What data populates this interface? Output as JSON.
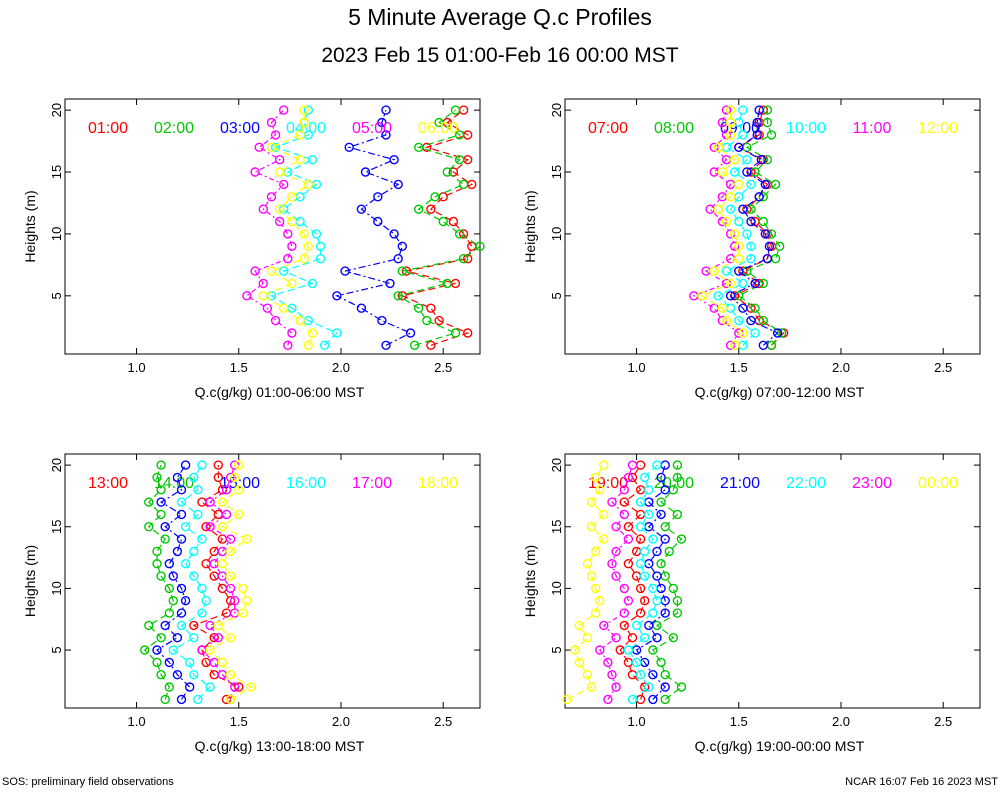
{
  "title": "5 Minute Average Q.c Profiles",
  "subtitle": "2023 Feb 15 01:00-Feb 16 00:00 MST",
  "footer_left": "SOS: preliminary field observations",
  "footer_right": "NCAR 16:07 Feb 16 2023 MST",
  "colors": {
    "red": "#ff0000",
    "green": "#00c800",
    "blue": "#0000ff",
    "cyan": "#00ffff",
    "magenta": "#ff00ff",
    "yellow": "#ffff00"
  },
  "chart_data": [
    {
      "type": "line",
      "xlabel": "Q.c(g/kg) 01:00-06:00 MST",
      "ylabel": "Heights (m)",
      "xlim": [
        0.65,
        2.68
      ],
      "ylim": [
        0.3,
        20.9
      ],
      "xticks": [
        1.0,
        1.5,
        2.0,
        2.5
      ],
      "yticks": [
        5,
        10,
        15,
        20
      ],
      "heights": [
        1,
        2,
        3,
        4,
        5,
        6,
        7,
        8,
        9,
        10,
        11,
        12,
        13,
        14,
        15,
        16,
        17,
        18,
        19,
        20
      ],
      "series": [
        {
          "name": "01:00",
          "color": "red",
          "values": [
            2.44,
            2.62,
            2.48,
            2.44,
            2.3,
            2.56,
            2.32,
            2.62,
            2.64,
            2.6,
            2.55,
            2.44,
            2.5,
            2.64,
            2.55,
            2.62,
            2.42,
            2.62,
            2.52,
            2.6
          ]
        },
        {
          "name": "02:00",
          "color": "green",
          "values": [
            2.36,
            2.56,
            2.42,
            2.38,
            2.28,
            2.52,
            2.3,
            2.6,
            2.68,
            2.58,
            2.5,
            2.38,
            2.46,
            2.6,
            2.52,
            2.58,
            2.38,
            2.58,
            2.48,
            2.56
          ]
        },
        {
          "name": "03:00",
          "color": "blue",
          "values": [
            2.22,
            2.34,
            2.2,
            2.1,
            1.98,
            2.24,
            2.02,
            2.28,
            2.3,
            2.26,
            2.18,
            2.1,
            2.18,
            2.28,
            2.12,
            2.26,
            2.04,
            2.22,
            2.2,
            2.22
          ]
        },
        {
          "name": "04:00",
          "color": "cyan",
          "values": [
            1.92,
            1.98,
            1.84,
            1.76,
            1.66,
            1.86,
            1.72,
            1.9,
            1.9,
            1.88,
            1.8,
            1.72,
            1.8,
            1.88,
            1.74,
            1.86,
            1.68,
            1.84,
            1.82,
            1.84
          ]
        },
        {
          "name": "05:00",
          "color": "magenta",
          "values": [
            1.74,
            1.76,
            1.68,
            1.64,
            1.54,
            1.62,
            1.58,
            1.74,
            1.76,
            1.74,
            1.7,
            1.62,
            1.66,
            1.72,
            1.58,
            1.7,
            1.6,
            1.68,
            1.66,
            1.72
          ]
        },
        {
          "name": "06:00",
          "color": "yellow",
          "values": [
            1.84,
            1.86,
            1.8,
            1.72,
            1.62,
            1.76,
            1.66,
            1.82,
            1.84,
            1.82,
            1.76,
            1.7,
            1.76,
            1.84,
            1.7,
            1.8,
            1.66,
            1.8,
            1.82,
            1.82
          ]
        }
      ]
    },
    {
      "type": "line",
      "xlabel": "Q.c(g/kg) 07:00-12:00 MST",
      "ylabel": "Heights (m)",
      "xlim": [
        0.65,
        2.68
      ],
      "ylim": [
        0.3,
        20.9
      ],
      "xticks": [
        1.0,
        1.5,
        2.0,
        2.5
      ],
      "yticks": [
        5,
        10,
        15,
        20
      ],
      "heights": [
        1,
        2,
        3,
        4,
        5,
        6,
        7,
        8,
        9,
        10,
        11,
        12,
        13,
        14,
        15,
        16,
        17,
        18,
        19,
        20
      ],
      "series": [
        {
          "name": "07:00",
          "color": "red",
          "values": [
            1.66,
            1.72,
            1.6,
            1.56,
            1.48,
            1.6,
            1.52,
            1.64,
            1.66,
            1.64,
            1.58,
            1.54,
            1.6,
            1.64,
            1.56,
            1.62,
            1.5,
            1.6,
            1.6,
            1.62
          ]
        },
        {
          "name": "08:00",
          "color": "green",
          "values": [
            1.66,
            1.71,
            1.62,
            1.58,
            1.5,
            1.62,
            1.54,
            1.68,
            1.7,
            1.66,
            1.62,
            1.56,
            1.62,
            1.68,
            1.58,
            1.64,
            1.54,
            1.66,
            1.64,
            1.64
          ]
        },
        {
          "name": "09:00",
          "color": "blue",
          "values": [
            1.62,
            1.69,
            1.56,
            1.52,
            1.46,
            1.58,
            1.5,
            1.64,
            1.65,
            1.63,
            1.56,
            1.52,
            1.6,
            1.63,
            1.54,
            1.61,
            1.5,
            1.59,
            1.59,
            1.6
          ]
        },
        {
          "name": "10:00",
          "color": "cyan",
          "values": [
            1.52,
            1.58,
            1.5,
            1.46,
            1.4,
            1.52,
            1.44,
            1.56,
            1.56,
            1.54,
            1.5,
            1.46,
            1.5,
            1.56,
            1.48,
            1.54,
            1.44,
            1.52,
            1.5,
            1.52
          ]
        },
        {
          "name": "11:00",
          "color": "magenta",
          "values": [
            1.46,
            1.5,
            1.42,
            1.38,
            1.28,
            1.44,
            1.34,
            1.46,
            1.48,
            1.46,
            1.42,
            1.36,
            1.42,
            1.46,
            1.38,
            1.44,
            1.38,
            1.44,
            1.42,
            1.44
          ]
        },
        {
          "name": "12:00",
          "color": "yellow",
          "values": [
            1.48,
            1.52,
            1.44,
            1.42,
            1.32,
            1.46,
            1.38,
            1.5,
            1.5,
            1.48,
            1.44,
            1.4,
            1.46,
            1.5,
            1.42,
            1.48,
            1.4,
            1.46,
            1.46,
            1.46
          ]
        }
      ]
    },
    {
      "type": "line",
      "xlabel": "Q.c(g/kg) 13:00-18:00 MST",
      "ylabel": "Heights (m)",
      "xlim": [
        0.65,
        2.68
      ],
      "ylim": [
        0.3,
        20.9
      ],
      "xticks": [
        1.0,
        1.5,
        2.0,
        2.5
      ],
      "yticks": [
        5,
        10,
        15,
        20
      ],
      "heights": [
        1,
        2,
        3,
        4,
        5,
        6,
        7,
        8,
        9,
        10,
        11,
        12,
        13,
        14,
        15,
        16,
        17,
        18,
        19,
        20
      ],
      "series": [
        {
          "name": "13:00",
          "color": "red",
          "values": [
            1.44,
            1.5,
            1.38,
            1.34,
            1.32,
            1.38,
            1.28,
            1.44,
            1.46,
            1.42,
            1.38,
            1.34,
            1.38,
            1.42,
            1.34,
            1.4,
            1.32,
            1.42,
            1.4,
            1.4
          ]
        },
        {
          "name": "14:00",
          "color": "green",
          "values": [
            1.14,
            1.16,
            1.12,
            1.1,
            1.04,
            1.12,
            1.06,
            1.16,
            1.18,
            1.16,
            1.12,
            1.1,
            1.1,
            1.14,
            1.06,
            1.12,
            1.06,
            1.12,
            1.1,
            1.12
          ]
        },
        {
          "name": "15:00",
          "color": "blue",
          "values": [
            1.22,
            1.26,
            1.2,
            1.16,
            1.1,
            1.2,
            1.14,
            1.22,
            1.24,
            1.22,
            1.18,
            1.16,
            1.2,
            1.22,
            1.14,
            1.22,
            1.12,
            1.22,
            1.2,
            1.24
          ]
        },
        {
          "name": "16:00",
          "color": "cyan",
          "values": [
            1.3,
            1.36,
            1.28,
            1.26,
            1.18,
            1.28,
            1.22,
            1.32,
            1.34,
            1.32,
            1.28,
            1.24,
            1.28,
            1.32,
            1.24,
            1.3,
            1.22,
            1.3,
            1.28,
            1.32
          ]
        },
        {
          "name": "17:00",
          "color": "magenta",
          "values": [
            1.46,
            1.48,
            1.42,
            1.38,
            1.32,
            1.4,
            1.36,
            1.48,
            1.48,
            1.46,
            1.42,
            1.38,
            1.42,
            1.46,
            1.36,
            1.44,
            1.36,
            1.44,
            1.46,
            1.48
          ]
        },
        {
          "name": "18:00",
          "color": "yellow",
          "values": [
            1.46,
            1.56,
            1.46,
            1.42,
            1.36,
            1.46,
            1.4,
            1.52,
            1.54,
            1.52,
            1.46,
            1.42,
            1.46,
            1.54,
            1.42,
            1.5,
            1.42,
            1.5,
            1.48,
            1.5
          ]
        }
      ]
    },
    {
      "type": "line",
      "xlabel": "Q.c(g/kg) 19:00-00:00 MST",
      "ylabel": "Heights (m)",
      "xlim": [
        0.65,
        2.68
      ],
      "ylim": [
        0.3,
        20.9
      ],
      "xticks": [
        1.0,
        1.5,
        2.0,
        2.5
      ],
      "yticks": [
        5,
        10,
        15,
        20
      ],
      "heights": [
        1,
        2,
        3,
        4,
        5,
        6,
        7,
        8,
        9,
        10,
        11,
        12,
        13,
        14,
        15,
        16,
        17,
        18,
        19,
        20
      ],
      "series": [
        {
          "name": "19:00",
          "color": "red",
          "values": [
            1.02,
            1.04,
            0.98,
            0.96,
            0.92,
            0.98,
            0.94,
            1.02,
            1.04,
            1.02,
            1.0,
            0.96,
            1.0,
            1.02,
            0.96,
            1.02,
            0.94,
            1.02,
            0.98,
            1.02
          ]
        },
        {
          "name": "20:00",
          "color": "green",
          "values": [
            1.14,
            1.22,
            1.14,
            1.12,
            1.08,
            1.18,
            1.1,
            1.2,
            1.2,
            1.18,
            1.14,
            1.12,
            1.16,
            1.22,
            1.14,
            1.2,
            1.12,
            1.18,
            1.2,
            1.2
          ]
        },
        {
          "name": "21:00",
          "color": "blue",
          "values": [
            1.08,
            1.14,
            1.08,
            1.04,
            1.0,
            1.1,
            1.06,
            1.14,
            1.14,
            1.12,
            1.1,
            1.06,
            1.1,
            1.14,
            1.06,
            1.12,
            1.06,
            1.14,
            1.12,
            1.14
          ]
        },
        {
          "name": "22:00",
          "color": "cyan",
          "values": [
            0.98,
            1.06,
            1.02,
            1.0,
            0.96,
            1.04,
            1.0,
            1.08,
            1.1,
            1.08,
            1.04,
            1.02,
            1.04,
            1.08,
            1.02,
            1.06,
            1.02,
            1.06,
            1.04,
            1.1
          ]
        },
        {
          "name": "23:00",
          "color": "magenta",
          "values": [
            0.86,
            0.9,
            0.88,
            0.86,
            0.82,
            0.9,
            0.84,
            0.94,
            0.96,
            0.94,
            0.9,
            0.88,
            0.9,
            0.96,
            0.9,
            0.94,
            0.88,
            0.94,
            0.96,
            0.98
          ]
        },
        {
          "name": "00:00",
          "color": "yellow",
          "values": [
            0.66,
            0.78,
            0.76,
            0.72,
            0.7,
            0.76,
            0.72,
            0.8,
            0.82,
            0.8,
            0.78,
            0.76,
            0.8,
            0.84,
            0.78,
            0.84,
            0.78,
            0.82,
            0.8,
            0.84
          ]
        }
      ]
    }
  ]
}
